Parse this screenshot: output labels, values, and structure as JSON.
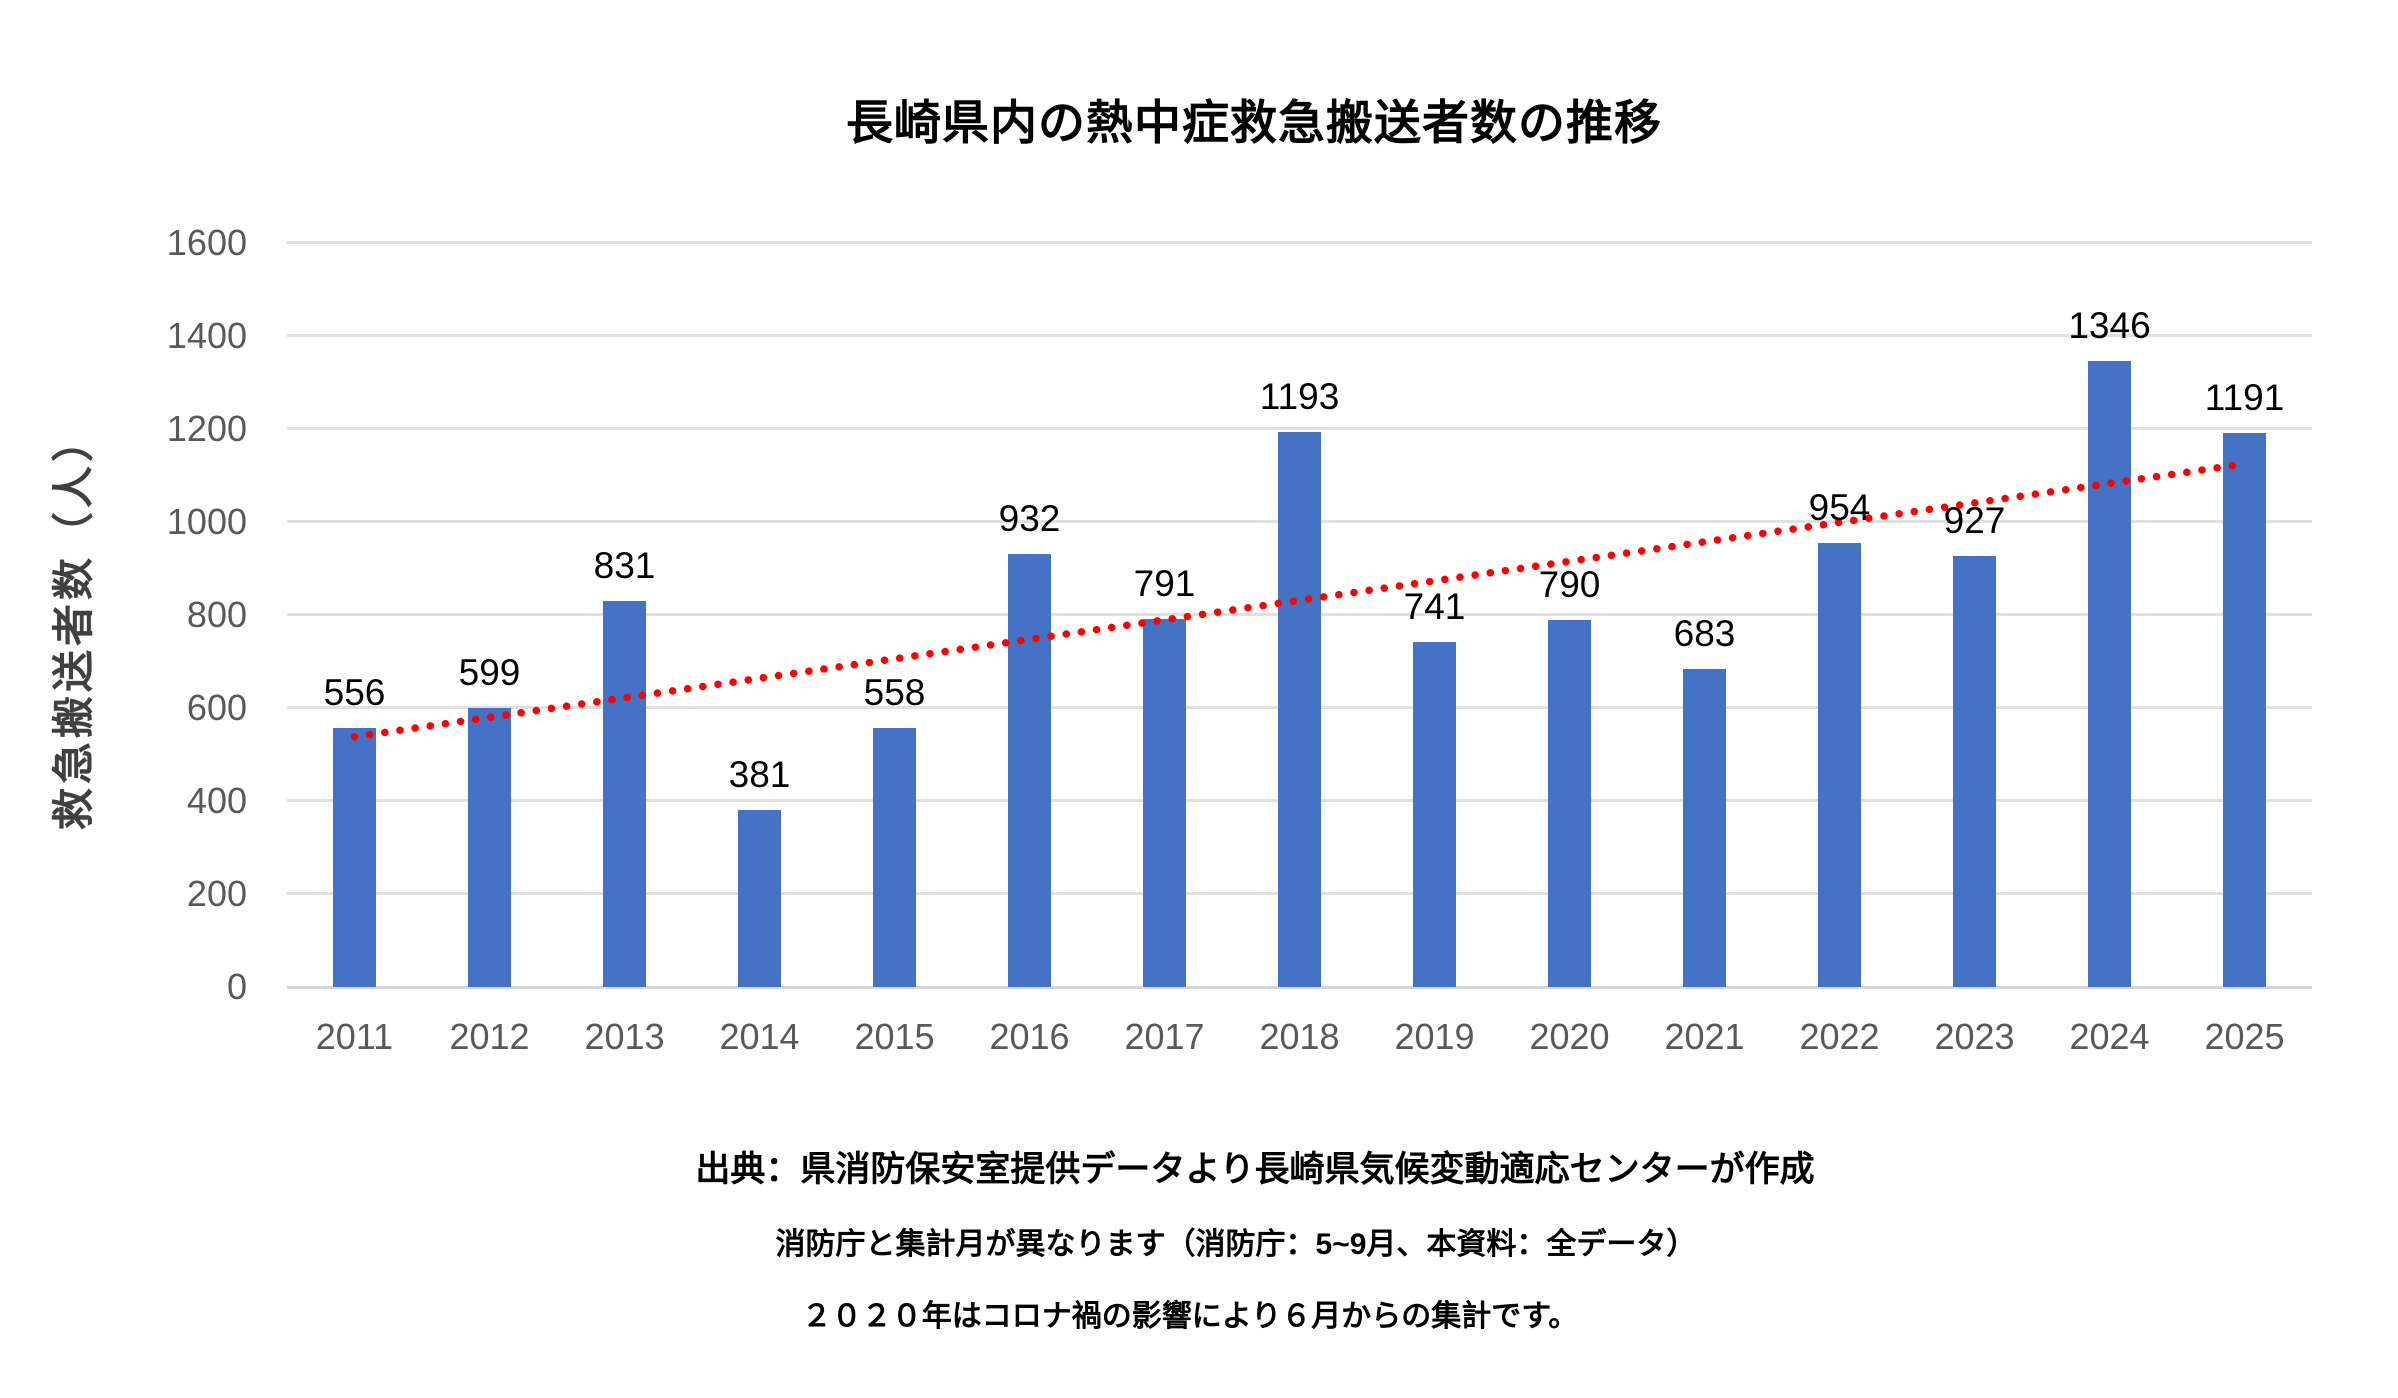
{
  "title": "長崎県内の熱中症救急搬送者数の推移",
  "chart_data": {
    "type": "bar",
    "title": "長崎県内の熱中症救急搬送者数の推移",
    "xlabel": "",
    "ylabel": "救急搬送者数（人）",
    "categories": [
      "2011",
      "2012",
      "2013",
      "2014",
      "2015",
      "2016",
      "2017",
      "2018",
      "2019",
      "2020",
      "2021",
      "2022",
      "2023",
      "2024",
      "2025"
    ],
    "values": [
      556,
      599,
      831,
      381,
      558,
      932,
      791,
      1193,
      741,
      790,
      683,
      954,
      927,
      1346,
      1191
    ],
    "ylim": [
      0,
      1600
    ],
    "yticks": [
      0,
      200,
      400,
      600,
      800,
      1000,
      1200,
      1400,
      1600
    ],
    "grid": true,
    "legend_position": "none",
    "data_labels": true,
    "bar_color": "#4472C4",
    "tick_color": "#595959",
    "label_color": "#000000",
    "gridline_color": "#e0e0e0",
    "trendline": {
      "type": "linear",
      "style": "dotted",
      "color": "#FF0000",
      "start_value": 538,
      "end_value": 1125
    }
  },
  "footnotes": [
    "出典：県消防保安室提供データより長崎県気候変動適応センターが作成",
    "消防庁と集計月が異なります（消防庁：5~9月、本資料：全データ）",
    "２０２０年はコロナ禍の影響により６月からの集計です。"
  ]
}
